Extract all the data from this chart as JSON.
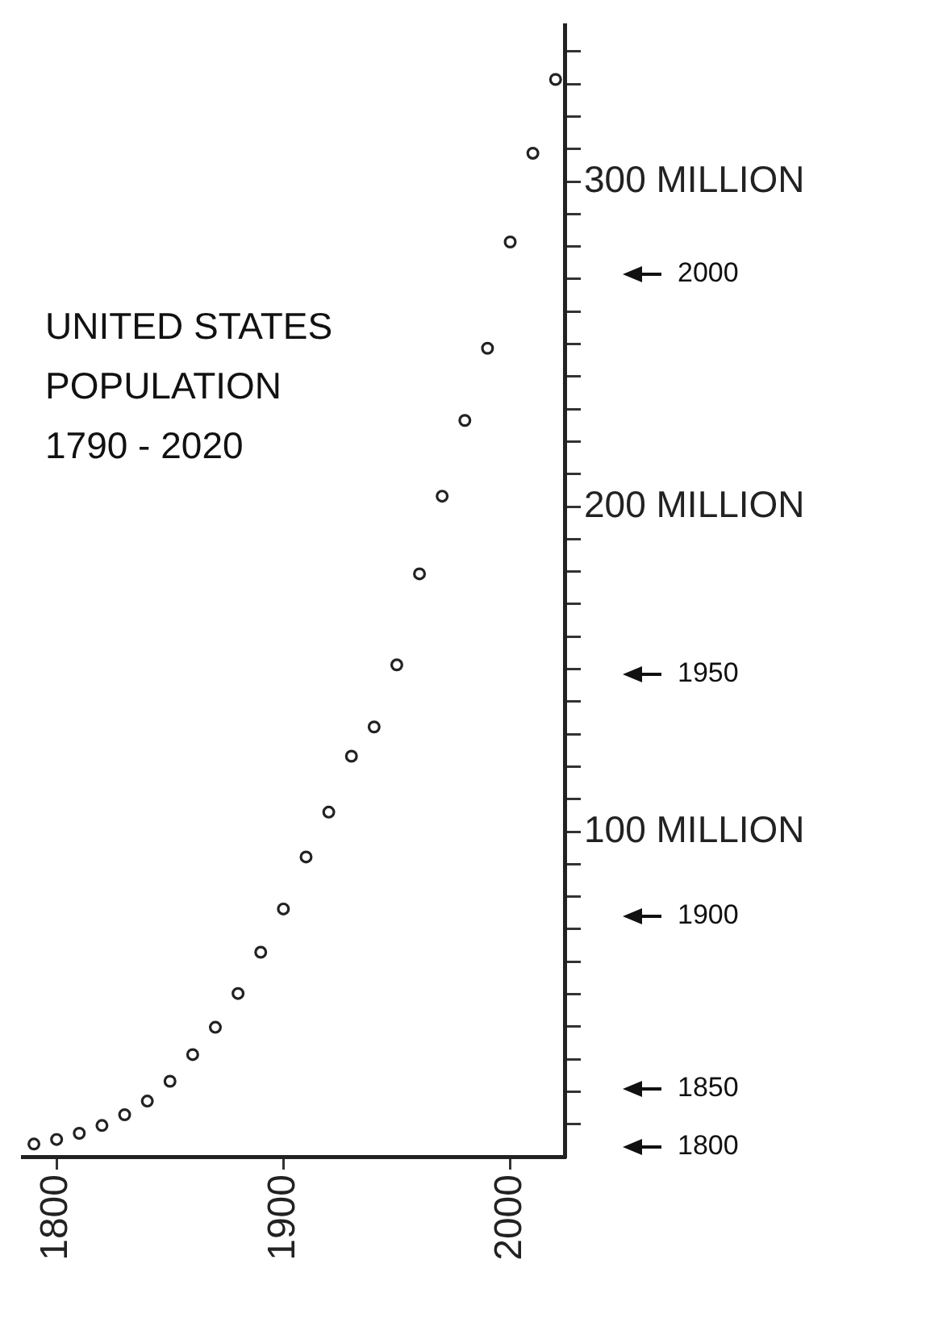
{
  "chart_data": {
    "type": "scatter",
    "title": "UNITED STATES\nPOPULATION\n1790 - 2020",
    "x": [
      1790,
      1800,
      1810,
      1820,
      1830,
      1840,
      1850,
      1860,
      1870,
      1880,
      1890,
      1900,
      1910,
      1920,
      1930,
      1940,
      1950,
      1960,
      1970,
      1980,
      1990,
      2000,
      2010,
      2020
    ],
    "values": [
      3.9,
      5.3,
      7.2,
      9.6,
      12.9,
      17.1,
      23.2,
      31.4,
      39.8,
      50.2,
      62.9,
      76.2,
      92.2,
      106,
      123.2,
      132.2,
      151.3,
      179.3,
      203.2,
      226.5,
      248.7,
      281.4,
      308.7,
      331.4
    ],
    "color": "#222222",
    "marker": "circle",
    "grid": false,
    "legend": false,
    "xlim": [
      1785,
      2024
    ],
    "xticks": [
      1800,
      1900,
      2000
    ],
    "ylim": [
      0,
      348
    ],
    "yticks": [
      {
        "value": 10,
        "label": null
      },
      {
        "value": 20,
        "label": null
      },
      {
        "value": 30,
        "label": null
      },
      {
        "value": 40,
        "label": null
      },
      {
        "value": 50,
        "label": null
      },
      {
        "value": 60,
        "label": null
      },
      {
        "value": 70,
        "label": null
      },
      {
        "value": 80,
        "label": null
      },
      {
        "value": 90,
        "label": null
      },
      {
        "value": 100,
        "label": "100 MILLION"
      },
      {
        "value": 110,
        "label": null
      },
      {
        "value": 120,
        "label": null
      },
      {
        "value": 130,
        "label": null
      },
      {
        "value": 140,
        "label": null
      },
      {
        "value": 150,
        "label": null
      },
      {
        "value": 160,
        "label": null
      },
      {
        "value": 170,
        "label": null
      },
      {
        "value": 180,
        "label": null
      },
      {
        "value": 190,
        "label": null
      },
      {
        "value": 200,
        "label": "200 MILLION"
      },
      {
        "value": 210,
        "label": null
      },
      {
        "value": 220,
        "label": null
      },
      {
        "value": 230,
        "label": null
      },
      {
        "value": 240,
        "label": null
      },
      {
        "value": 250,
        "label": null
      },
      {
        "value": 260,
        "label": null
      },
      {
        "value": 270,
        "label": null
      },
      {
        "value": 280,
        "label": null
      },
      {
        "value": 290,
        "label": null
      },
      {
        "value": 300,
        "label": "300 MILLION"
      },
      {
        "value": 310,
        "label": null
      },
      {
        "value": 320,
        "label": null
      },
      {
        "value": 330,
        "label": null
      },
      {
        "value": 340,
        "label": null
      }
    ],
    "annotations": [
      "1800",
      "1850",
      "1900",
      "1950",
      "2000"
    ]
  }
}
